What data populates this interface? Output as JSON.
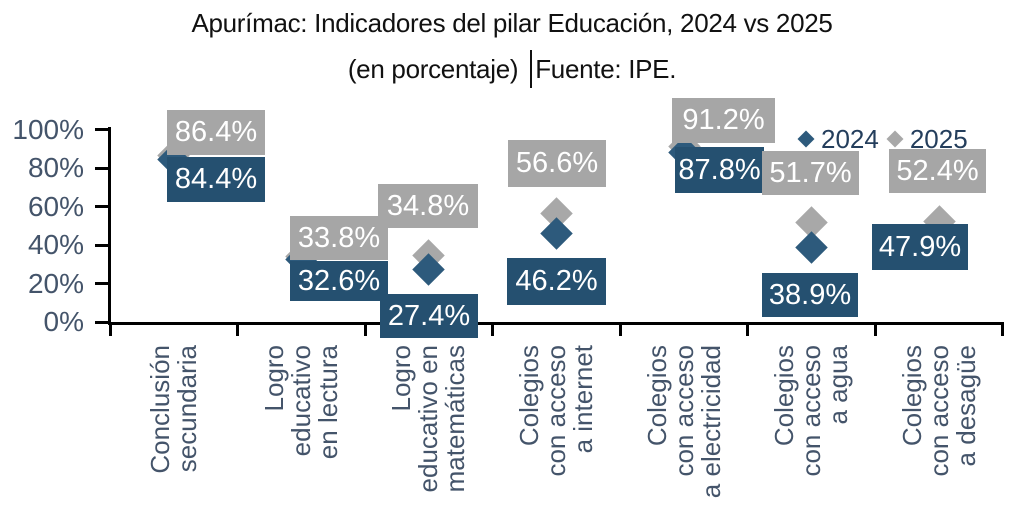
{
  "title": {
    "line1": "Apurímac: Indicadores del pilar Educación, 2024 vs 2025",
    "line2_part1": "(en porcentaje)",
    "line2_part2": "Fuente: IPE."
  },
  "legend": {
    "items": [
      {
        "label": "2024",
        "color": "#2D5A7C"
      },
      {
        "label": "2025",
        "color": "#A8A8A8"
      }
    ]
  },
  "axis": {
    "y_tick_labels": [
      "100%",
      "80%",
      "60%",
      "40%",
      "20%",
      "0%"
    ]
  },
  "colors": {
    "series_2024_box": "#255070",
    "series_2024_marker": "#2D5A7C",
    "series_2025_box": "#A6A6A6",
    "series_2025_marker": "#A8A8A8",
    "axis_text": "#44546A",
    "legend_text": "#243E5C",
    "axis_line": "#000000",
    "label_text": "#FFFFFF"
  },
  "chart_data": {
    "type": "scatter",
    "title": "Apurímac: Indicadores del pilar Educación, 2024 vs 2025 (en porcentaje) Fuente: IPE.",
    "categories": [
      "Conclusión secundaria",
      "Logro educativo en lectura",
      "Logro educativo en matemáticas",
      "Colegios con acceso a internet",
      "Colegios con acceso a electricidad",
      "Colegios con acceso a agua",
      "Colegios con acceso a desagüe"
    ],
    "category_label_lines": [
      [
        "Conclusión",
        "secundaria"
      ],
      [
        "Logro",
        "educativo",
        "en lectura"
      ],
      [
        "Logro",
        "educativo en",
        "matemáticas"
      ],
      [
        "Colegios",
        "con acceso",
        "a internet"
      ],
      [
        "Colegios",
        "con acceso",
        "a electricidad"
      ],
      [
        "Colegios",
        "con acceso",
        "a agua"
      ],
      [
        "Colegios",
        "con acceso",
        "a desagüe"
      ]
    ],
    "series": [
      {
        "name": "2024",
        "marker": "diamond",
        "color": "#255070",
        "values": [
          84.4,
          32.6,
          27.4,
          46.2,
          87.8,
          38.9,
          47.9
        ],
        "labels": [
          "84.4%",
          "32.6%",
          "27.4%",
          "46.2%",
          "87.8%",
          "38.9%",
          "47.9%"
        ]
      },
      {
        "name": "2025",
        "marker": "diamond",
        "color": "#A6A6A6",
        "values": [
          86.4,
          33.8,
          34.8,
          56.6,
          91.2,
          51.7,
          52.4
        ],
        "labels": [
          "86.4%",
          "33.8%",
          "34.8%",
          "56.6%",
          "91.2%",
          "51.7%",
          "52.4%"
        ]
      }
    ],
    "ylim": [
      0,
      100
    ],
    "y_tick_step": 20,
    "grid": false,
    "legend_position": "top-right",
    "xlabel": "",
    "ylabel": ""
  }
}
